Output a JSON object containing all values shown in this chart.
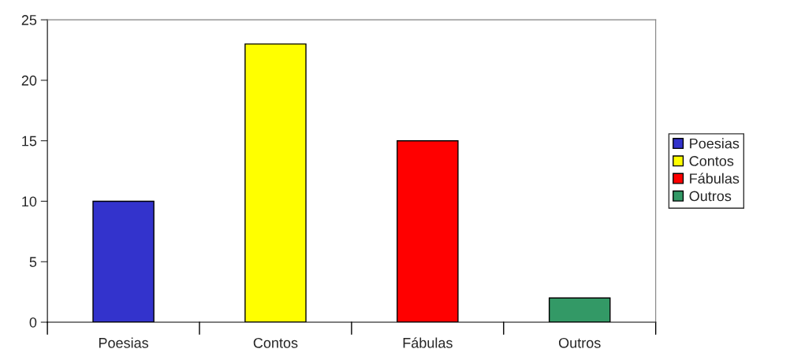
{
  "chart_data": {
    "type": "bar",
    "categories": [
      "Poesias",
      "Contos",
      "Fábulas",
      "Outros"
    ],
    "series": [
      {
        "name": "Poesias",
        "color": "#3333cc",
        "values": [
          10,
          null,
          null,
          null
        ]
      },
      {
        "name": "Contos",
        "color": "#ffff00",
        "values": [
          null,
          23,
          null,
          null
        ]
      },
      {
        "name": "Fábulas",
        "color": "#ff0000",
        "values": [
          null,
          null,
          15,
          null
        ]
      },
      {
        "name": "Outros",
        "color": "#339966",
        "values": [
          null,
          null,
          null,
          2
        ]
      }
    ],
    "stacked": true,
    "ylim": [
      0,
      25
    ],
    "yticks": [
      0,
      5,
      10,
      15,
      20,
      25
    ],
    "grid": false,
    "legend": "right"
  }
}
